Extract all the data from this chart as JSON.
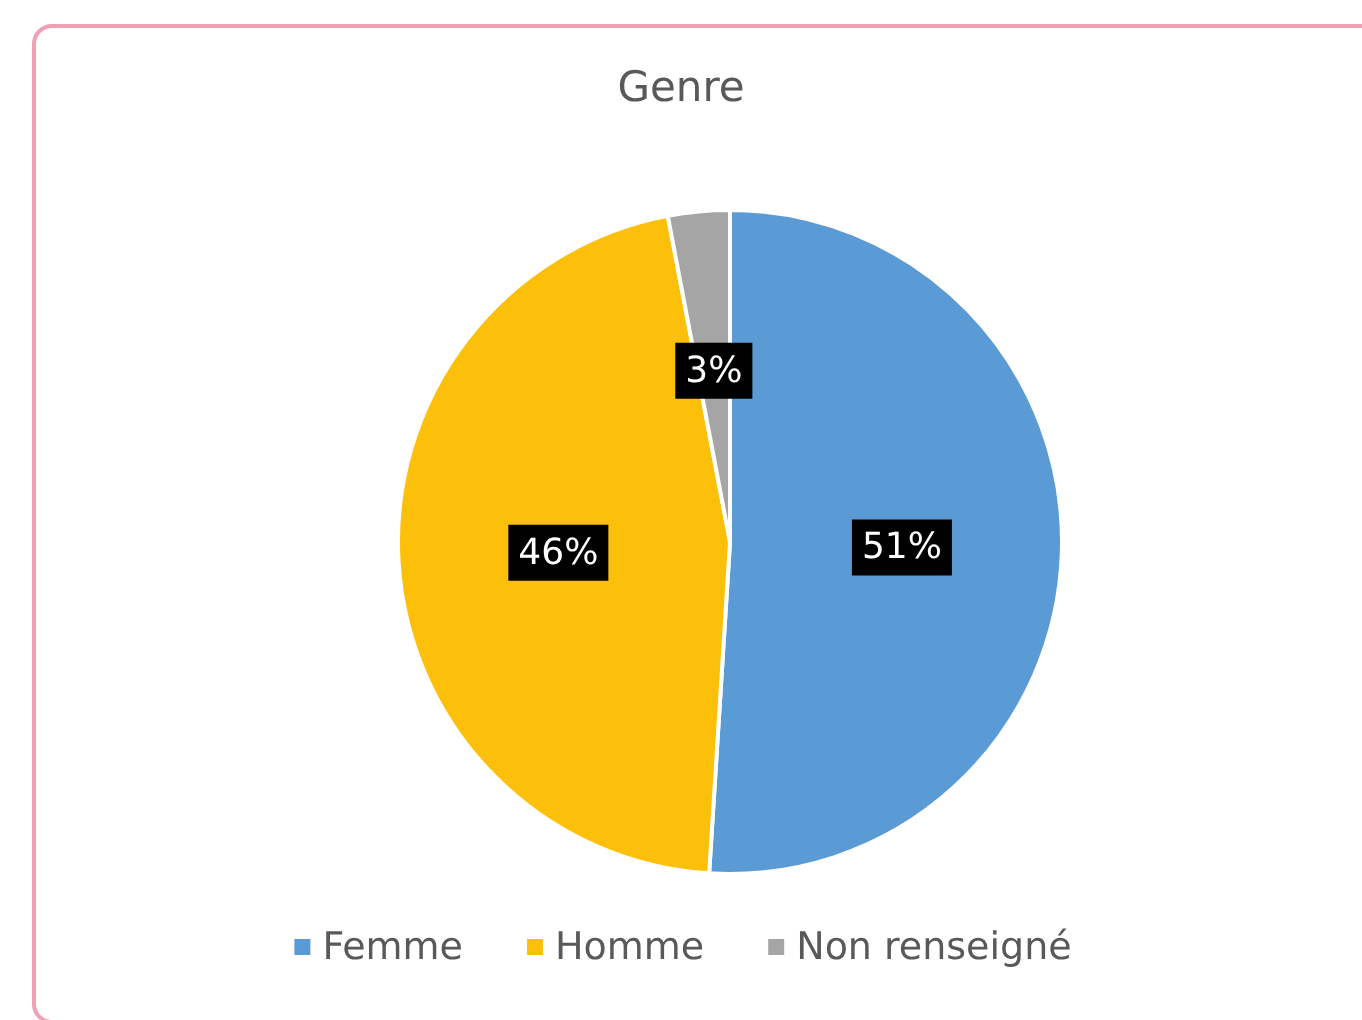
{
  "chart_data": {
    "type": "pie",
    "title": "Genre",
    "categories": [
      "Femme",
      "Homme",
      "Non renseigné"
    ],
    "values": [
      51,
      46,
      3
    ],
    "value_labels": [
      "51%",
      "46%",
      "3%"
    ],
    "colors": [
      "#5b9bd5",
      "#fcbf0a",
      "#a5a5a5"
    ],
    "legend": "bottom"
  }
}
